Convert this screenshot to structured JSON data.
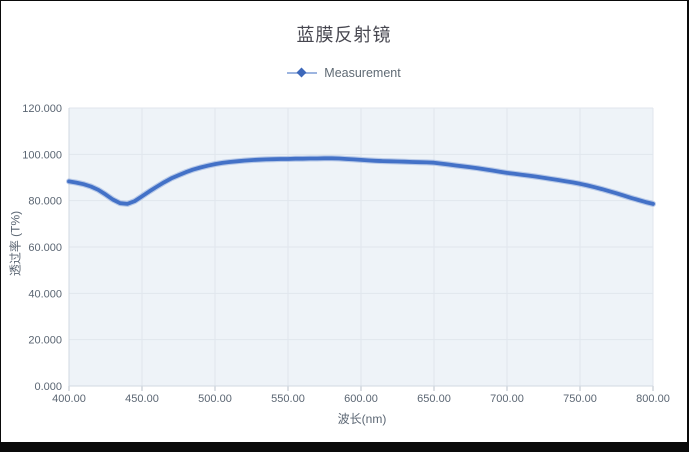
{
  "window": {
    "background": "#ffffff",
    "border_color": "#000000"
  },
  "chart": {
    "title": "蓝膜反射镜",
    "legend": {
      "label": "Measurement"
    },
    "x_axis": {
      "label": "波长(nm)",
      "tick_labels": [
        "400.00",
        "450.00",
        "500.00",
        "550.00",
        "600.00",
        "650.00",
        "700.00",
        "750.00",
        "800.00"
      ],
      "tick_values": [
        400,
        450,
        500,
        550,
        600,
        650,
        700,
        750,
        800
      ]
    },
    "y_axis": {
      "label": "透过率 (T%)",
      "tick_labels": [
        "0.000",
        "20.000",
        "40.000",
        "60.000",
        "80.000",
        "100.000",
        "120.000"
      ],
      "tick_values": [
        0,
        20,
        40,
        60,
        80,
        100,
        120
      ]
    },
    "colors": {
      "line": "#4371c7",
      "line_halo": "#8aa6da",
      "legend_line": "#9db5e0",
      "legend_marker": "#3d68ba",
      "plot_bg": "#eef3f8",
      "grid": "#e0e6ed",
      "axis_line": "#d2dae2",
      "tick": "#b9c2cb",
      "tick_text": "#5b6673",
      "title_text": "#474750"
    }
  },
  "chart_data": {
    "type": "line",
    "title": "蓝膜反射镜",
    "xlabel": "波长(nm)",
    "ylabel": "透过率 (T%)",
    "xlim": [
      400,
      800
    ],
    "ylim": [
      0,
      120
    ],
    "grid": true,
    "legend_position": "top-center",
    "x_ticks": [
      400,
      450,
      500,
      550,
      600,
      650,
      700,
      750,
      800
    ],
    "y_ticks": [
      0,
      20,
      40,
      60,
      80,
      100,
      120
    ],
    "series": [
      {
        "name": "Measurement",
        "x": [
          400,
          405,
          410,
          415,
          420,
          425,
          430,
          435,
          440,
          445,
          450,
          455,
          460,
          465,
          470,
          475,
          480,
          485,
          490,
          495,
          500,
          505,
          510,
          515,
          520,
          525,
          530,
          535,
          540,
          545,
          550,
          555,
          560,
          565,
          570,
          575,
          580,
          585,
          590,
          595,
          600,
          605,
          610,
          615,
          620,
          625,
          630,
          635,
          640,
          645,
          650,
          655,
          660,
          665,
          670,
          675,
          680,
          685,
          690,
          695,
          700,
          705,
          710,
          715,
          720,
          725,
          730,
          735,
          740,
          745,
          750,
          755,
          760,
          765,
          770,
          775,
          780,
          785,
          790,
          795,
          800
        ],
        "values": [
          88.3,
          87.8,
          87.1,
          86.1,
          84.7,
          82.7,
          80.5,
          78.9,
          78.6,
          79.8,
          81.9,
          84.0,
          86.0,
          87.9,
          89.6,
          91.0,
          92.3,
          93.4,
          94.3,
          95.1,
          95.8,
          96.3,
          96.7,
          97.0,
          97.3,
          97.5,
          97.7,
          97.8,
          97.9,
          98.0,
          98.0,
          98.1,
          98.1,
          98.2,
          98.2,
          98.3,
          98.3,
          98.2,
          98.0,
          97.8,
          97.6,
          97.4,
          97.2,
          97.1,
          97.0,
          96.9,
          96.8,
          96.7,
          96.6,
          96.5,
          96.4,
          96.0,
          95.6,
          95.2,
          94.8,
          94.4,
          94.0,
          93.5,
          93.0,
          92.5,
          92.0,
          91.6,
          91.2,
          90.8,
          90.4,
          89.9,
          89.4,
          88.9,
          88.4,
          87.9,
          87.3,
          86.6,
          85.8,
          85.0,
          84.1,
          83.2,
          82.2,
          81.2,
          80.3,
          79.4,
          78.6
        ]
      }
    ]
  }
}
